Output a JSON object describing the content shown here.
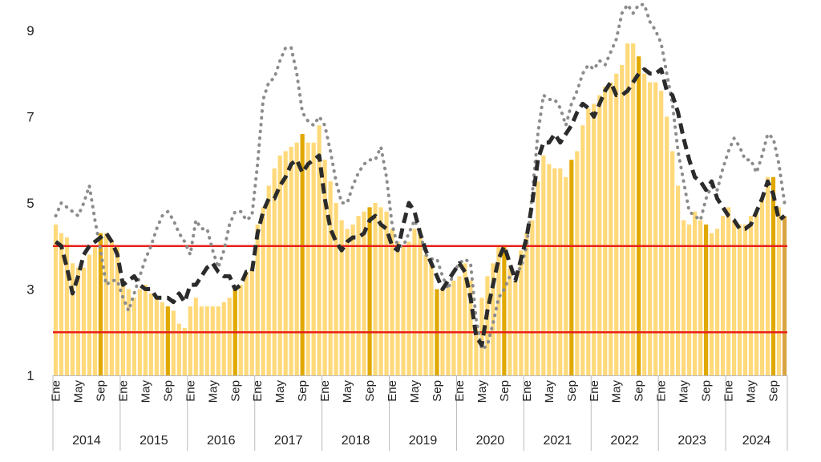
{
  "chart_data": {
    "type": "bar",
    "x_start": "2014-01",
    "x_end": "2024-11",
    "ylim": [
      1,
      9.7
    ],
    "yticks": [
      1,
      3,
      5,
      7,
      9
    ],
    "month_labels": [
      "Ene",
      "May",
      "Sep"
    ],
    "years": [
      "2014",
      "2015",
      "2016",
      "2017",
      "2018",
      "2019",
      "2020",
      "2021",
      "2022",
      "2023",
      "2024"
    ],
    "reference_lines": [
      2,
      4
    ],
    "colors": {
      "bar": "#FFD97A",
      "bar_highlight": "#E0A800",
      "bar_last": "#D9A441",
      "dashed_line": "#2B2B2B",
      "dotted_line": "#8C8C8C",
      "reference_line": "#E8211B",
      "axis": "#BBBBBB"
    },
    "series": [
      {
        "type": "bar",
        "values": [
          4.5,
          4.3,
          4.2,
          3.6,
          3.5,
          3.5,
          3.8,
          4.0,
          4.3,
          4.3,
          4.1,
          4.0,
          3.2,
          3.0,
          2.8,
          3.0,
          3.1,
          2.9,
          2.8,
          2.7,
          2.6,
          2.5,
          2.2,
          2.1,
          2.6,
          2.8,
          2.6,
          2.6,
          2.6,
          2.6,
          2.7,
          2.8,
          3.0,
          3.1,
          3.4,
          3.5,
          4.5,
          4.9,
          5.4,
          5.8,
          6.1,
          6.2,
          6.3,
          6.4,
          6.6,
          6.4,
          6.4,
          6.8,
          6.0,
          5.5,
          5.0,
          4.6,
          4.4,
          4.5,
          4.7,
          4.8,
          4.9,
          5.0,
          4.9,
          4.8,
          4.4,
          4.1,
          4.0,
          4.1,
          4.4,
          4.3,
          3.8,
          3.6,
          3.0,
          3.0,
          3.1,
          3.2,
          3.3,
          3.6,
          3.2,
          2.1,
          2.8,
          3.3,
          3.6,
          4.0,
          4.0,
          3.5,
          3.2,
          3.9,
          4.3,
          4.6,
          5.5,
          6.1,
          5.9,
          5.8,
          5.8,
          5.6,
          6.0,
          6.2,
          6.8,
          7.2,
          7.3,
          7.5,
          7.7,
          7.8,
          8.0,
          8.2,
          8.7,
          8.7,
          8.4,
          8.0,
          7.8,
          7.8,
          7.6,
          7.0,
          6.2,
          5.4,
          4.6,
          4.5,
          4.8,
          4.6,
          4.5,
          4.3,
          4.4,
          4.7,
          4.9,
          4.6,
          4.5,
          4.5,
          4.7,
          4.8,
          5.1,
          5.6,
          5.6,
          4.9,
          4.7
        ]
      },
      {
        "type": "dashed_line",
        "values": [
          4.1,
          4.0,
          3.5,
          2.9,
          3.3,
          3.8,
          4.0,
          4.1,
          4.2,
          4.3,
          4.1,
          3.8,
          3.1,
          3.2,
          3.3,
          3.1,
          3.0,
          3.0,
          2.8,
          2.8,
          2.8,
          2.7,
          2.9,
          2.7,
          3.1,
          3.1,
          3.3,
          3.5,
          3.6,
          3.4,
          3.3,
          3.3,
          3.0,
          3.1,
          3.4,
          3.4,
          4.3,
          4.8,
          5.1,
          5.1,
          5.4,
          5.6,
          5.9,
          6.0,
          5.7,
          5.9,
          6.0,
          6.1,
          5.1,
          4.4,
          4.1,
          3.9,
          4.1,
          4.2,
          4.2,
          4.3,
          4.6,
          4.7,
          4.5,
          4.4,
          4.0,
          3.9,
          4.5,
          5.0,
          4.8,
          4.3,
          3.9,
          3.6,
          3.3,
          3.0,
          3.2,
          3.4,
          3.6,
          3.4,
          2.8,
          1.9,
          1.7,
          2.5,
          3.1,
          3.7,
          4.0,
          3.6,
          3.2,
          3.7,
          4.2,
          5.0,
          6.0,
          6.4,
          6.4,
          6.6,
          6.4,
          6.6,
          6.8,
          7.1,
          7.3,
          7.2,
          7.0,
          7.3,
          7.6,
          7.8,
          7.5,
          7.5,
          7.6,
          7.8,
          8.0,
          8.1,
          8.0,
          8.0,
          8.1,
          7.6,
          7.5,
          7.1,
          6.5,
          6.0,
          5.6,
          5.5,
          5.3,
          5.5,
          5.1,
          4.9,
          4.7,
          4.6,
          4.4,
          4.4,
          4.5,
          4.8,
          5.1,
          5.5,
          5.2,
          4.6,
          4.7
        ]
      },
      {
        "type": "dotted_line",
        "values": [
          4.7,
          5.0,
          4.9,
          4.8,
          4.7,
          5.0,
          5.4,
          4.6,
          3.9,
          3.1,
          3.2,
          3.2,
          2.8,
          2.5,
          2.9,
          3.3,
          3.7,
          4.0,
          4.4,
          4.7,
          4.8,
          4.6,
          4.3,
          4.1,
          3.8,
          4.6,
          4.4,
          4.4,
          3.9,
          3.5,
          3.9,
          4.5,
          4.8,
          4.8,
          4.6,
          4.7,
          5.9,
          7.4,
          7.8,
          7.9,
          8.3,
          8.6,
          8.6,
          8.0,
          7.1,
          6.9,
          6.8,
          7.0,
          6.8,
          6.2,
          5.5,
          5.0,
          5.0,
          5.4,
          5.7,
          5.9,
          6.0,
          6.0,
          6.3,
          5.6,
          4.5,
          4.0,
          4.0,
          4.3,
          4.6,
          4.3,
          3.8,
          3.7,
          3.7,
          3.3,
          3.0,
          3.4,
          3.6,
          3.7,
          3.6,
          2.3,
          1.6,
          1.7,
          2.2,
          2.8,
          3.0,
          3.3,
          3.4,
          3.5,
          4.0,
          5.2,
          6.6,
          7.5,
          7.4,
          7.4,
          7.2,
          6.8,
          7.3,
          7.6,
          8.0,
          8.2,
          8.1,
          8.3,
          8.2,
          8.5,
          8.8,
          9.4,
          9.6,
          9.4,
          9.6,
          9.6,
          9.2,
          9.0,
          8.7,
          8.0,
          7.3,
          6.2,
          5.5,
          4.8,
          4.7,
          4.6,
          5.1,
          5.4,
          5.3,
          5.8,
          6.2,
          6.5,
          6.3,
          6.0,
          6.0,
          5.7,
          6.1,
          6.6,
          6.5,
          5.9,
          5.0
        ]
      }
    ]
  }
}
